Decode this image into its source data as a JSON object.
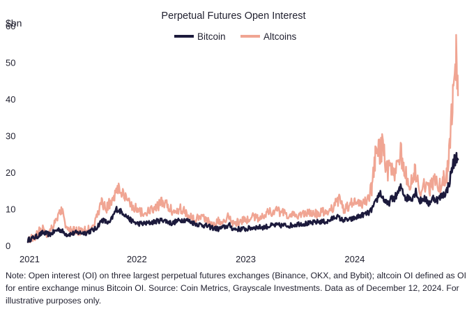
{
  "chart_data": {
    "type": "line",
    "title": "Perpetual Futures Open Interest",
    "ylabel": "$bn",
    "xlabel": "",
    "ylim": [
      0,
      60
    ],
    "yticks": [
      0,
      10,
      20,
      30,
      40,
      50,
      60
    ],
    "xlim": [
      "2021-01-01",
      "2024-12-12"
    ],
    "xticks": [
      {
        "label": "2021",
        "date": "2021-01-01"
      },
      {
        "label": "2022",
        "date": "2022-01-01"
      },
      {
        "label": "2023",
        "date": "2023-01-01"
      },
      {
        "label": "2024",
        "date": "2024-01-01"
      }
    ],
    "legend_position": "top-center",
    "grid": false,
    "series": [
      {
        "name": "Bitcoin",
        "color": "#1c1a3c",
        "points": [
          [
            "2021-01-01",
            1.5
          ],
          [
            "2021-02-01",
            2.5
          ],
          [
            "2021-02-20",
            3.5
          ],
          [
            "2021-03-15",
            3.0
          ],
          [
            "2021-04-15",
            4.5
          ],
          [
            "2021-05-12",
            3.0
          ],
          [
            "2021-06-15",
            3.5
          ],
          [
            "2021-07-15",
            3.5
          ],
          [
            "2021-08-15",
            4.5
          ],
          [
            "2021-09-07",
            7.0
          ],
          [
            "2021-10-01",
            6.0
          ],
          [
            "2021-10-25",
            10.0
          ],
          [
            "2021-11-15",
            9.0
          ],
          [
            "2021-12-10",
            7.0
          ],
          [
            "2022-01-01",
            6.0
          ],
          [
            "2022-02-01",
            6.0
          ],
          [
            "2022-03-01",
            6.5
          ],
          [
            "2022-03-30",
            7.0
          ],
          [
            "2022-04-30",
            6.0
          ],
          [
            "2022-05-10",
            6.5
          ],
          [
            "2022-06-01",
            7.0
          ],
          [
            "2022-06-15",
            7.0
          ],
          [
            "2022-07-15",
            6.0
          ],
          [
            "2022-08-15",
            5.5
          ],
          [
            "2022-09-05",
            5.0
          ],
          [
            "2022-10-01",
            4.5
          ],
          [
            "2022-11-08",
            5.5
          ],
          [
            "2022-11-20",
            4.5
          ],
          [
            "2022-12-15",
            4.5
          ],
          [
            "2023-01-01",
            4.5
          ],
          [
            "2023-02-01",
            5.0
          ],
          [
            "2023-03-01",
            5.0
          ],
          [
            "2023-04-01",
            5.5
          ],
          [
            "2023-05-01",
            5.5
          ],
          [
            "2023-06-01",
            5.5
          ],
          [
            "2023-07-01",
            6.0
          ],
          [
            "2023-08-01",
            6.0
          ],
          [
            "2023-09-01",
            6.5
          ],
          [
            "2023-10-01",
            6.5
          ],
          [
            "2023-11-01",
            8.0
          ],
          [
            "2023-11-20",
            7.0
          ],
          [
            "2023-12-15",
            7.0
          ],
          [
            "2024-01-01",
            7.5
          ],
          [
            "2024-02-01",
            8.5
          ],
          [
            "2024-02-20",
            9.0
          ],
          [
            "2024-03-10",
            11.5
          ],
          [
            "2024-03-25",
            14.5
          ],
          [
            "2024-04-05",
            13.0
          ],
          [
            "2024-04-20",
            11.0
          ],
          [
            "2024-05-01",
            12.5
          ],
          [
            "2024-05-20",
            13.5
          ],
          [
            "2024-06-05",
            16.0
          ],
          [
            "2024-06-20",
            13.0
          ],
          [
            "2024-07-10",
            13.0
          ],
          [
            "2024-07-25",
            15.0
          ],
          [
            "2024-08-05",
            12.0
          ],
          [
            "2024-08-20",
            13.0
          ],
          [
            "2024-09-05",
            11.5
          ],
          [
            "2024-09-20",
            13.0
          ],
          [
            "2024-10-05",
            12.5
          ],
          [
            "2024-10-25",
            14.0
          ],
          [
            "2024-11-05",
            15.0
          ],
          [
            "2024-11-15",
            18.0
          ],
          [
            "2024-11-22",
            21.0
          ],
          [
            "2024-12-01",
            23.5
          ],
          [
            "2024-12-08",
            24.0
          ],
          [
            "2024-12-12",
            23.5
          ]
        ]
      },
      {
        "name": "Altcoins",
        "color": "#f0a593",
        "points": [
          [
            "2021-01-01",
            1.5
          ],
          [
            "2021-01-25",
            2.5
          ],
          [
            "2021-02-20",
            5.0
          ],
          [
            "2021-03-05",
            3.0
          ],
          [
            "2021-03-25",
            5.5
          ],
          [
            "2021-04-15",
            8.5
          ],
          [
            "2021-04-25",
            10.0
          ],
          [
            "2021-05-12",
            4.0
          ],
          [
            "2021-06-01",
            4.0
          ],
          [
            "2021-06-15",
            4.0
          ],
          [
            "2021-07-15",
            4.0
          ],
          [
            "2021-08-15",
            6.5
          ],
          [
            "2021-09-05",
            12.0
          ],
          [
            "2021-09-20",
            10.0
          ],
          [
            "2021-10-10",
            12.5
          ],
          [
            "2021-11-01",
            16.0
          ],
          [
            "2021-11-20",
            13.0
          ],
          [
            "2021-12-10",
            11.5
          ],
          [
            "2022-01-01",
            10.0
          ],
          [
            "2022-01-25",
            8.5
          ],
          [
            "2022-02-15",
            9.5
          ],
          [
            "2022-03-01",
            10.0
          ],
          [
            "2022-04-01",
            12.0
          ],
          [
            "2022-04-15",
            10.5
          ],
          [
            "2022-05-10",
            9.0
          ],
          [
            "2022-05-25",
            10.5
          ],
          [
            "2022-06-15",
            9.0
          ],
          [
            "2022-07-15",
            7.0
          ],
          [
            "2022-08-01",
            8.5
          ],
          [
            "2022-08-20",
            7.0
          ],
          [
            "2022-09-10",
            6.0
          ],
          [
            "2022-10-01",
            6.5
          ],
          [
            "2022-10-15",
            7.0
          ],
          [
            "2022-11-08",
            8.0
          ],
          [
            "2022-11-20",
            6.0
          ],
          [
            "2022-12-15",
            6.5
          ],
          [
            "2023-01-01",
            7.0
          ],
          [
            "2023-02-01",
            8.0
          ],
          [
            "2023-02-15",
            7.5
          ],
          [
            "2023-03-15",
            9.0
          ],
          [
            "2023-04-15",
            9.5
          ],
          [
            "2023-05-15",
            8.5
          ],
          [
            "2023-06-15",
            8.0
          ],
          [
            "2023-07-15",
            9.0
          ],
          [
            "2023-08-15",
            8.5
          ],
          [
            "2023-09-15",
            9.0
          ],
          [
            "2023-10-15",
            10.0
          ],
          [
            "2023-11-15",
            13.0
          ],
          [
            "2023-11-25",
            10.0
          ],
          [
            "2023-12-15",
            11.0
          ],
          [
            "2024-01-01",
            12.0
          ],
          [
            "2024-01-20",
            11.0
          ],
          [
            "2024-02-15",
            13.0
          ],
          [
            "2024-02-28",
            16.0
          ],
          [
            "2024-03-10",
            24.0
          ],
          [
            "2024-03-15",
            29.0
          ],
          [
            "2024-03-25",
            26.0
          ],
          [
            "2024-04-05",
            27.0
          ],
          [
            "2024-04-15",
            20.0
          ],
          [
            "2024-04-25",
            21.0
          ],
          [
            "2024-05-10",
            19.0
          ],
          [
            "2024-05-20",
            23.0
          ],
          [
            "2024-06-05",
            25.0
          ],
          [
            "2024-06-15",
            20.0
          ],
          [
            "2024-07-01",
            17.0
          ],
          [
            "2024-07-20",
            20.0
          ],
          [
            "2024-08-05",
            15.0
          ],
          [
            "2024-08-20",
            17.0
          ],
          [
            "2024-09-05",
            15.0
          ],
          [
            "2024-09-25",
            18.0
          ],
          [
            "2024-10-10",
            16.0
          ],
          [
            "2024-10-25",
            18.0
          ],
          [
            "2024-11-05",
            19.0
          ],
          [
            "2024-11-12",
            25.0
          ],
          [
            "2024-11-18",
            32.0
          ],
          [
            "2024-11-25",
            40.0
          ],
          [
            "2024-12-03",
            50.0
          ],
          [
            "2024-12-06",
            54.0
          ],
          [
            "2024-12-09",
            46.0
          ],
          [
            "2024-12-12",
            41.0
          ]
        ]
      }
    ]
  },
  "note": "Note: Open interest (OI) on three largest perpetual futures exchanges (Binance, OKX, and Bybit); altcoin OI defined as OI for entire exchange minus Bitcoin OI. Source: Coin Metrics, Grayscale Investments. Data as of December 12, 2024. For illustrative purposes only."
}
